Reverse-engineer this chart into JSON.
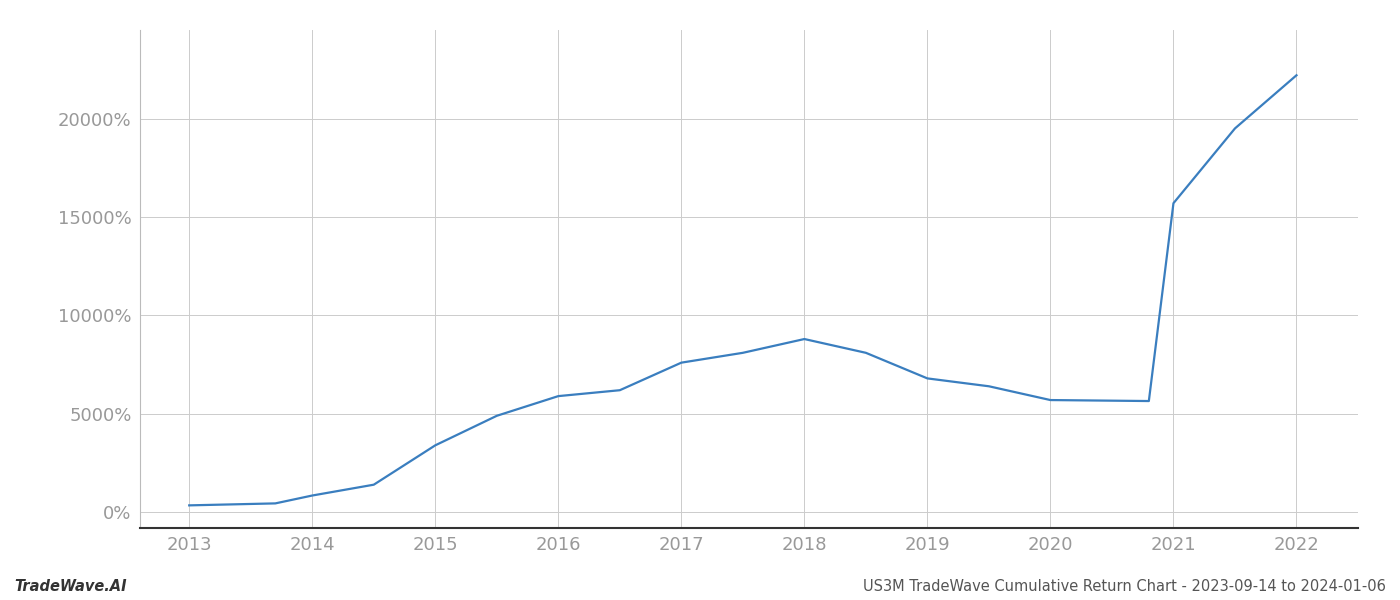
{
  "title": "",
  "footer_left": "TradeWave.AI",
  "footer_right": "US3M TradeWave Cumulative Return Chart - 2023-09-14 to 2024-01-06",
  "line_color": "#3a7ebf",
  "background_color": "#ffffff",
  "grid_color": "#cccccc",
  "x_values": [
    2013,
    2013.7,
    2014,
    2014.5,
    2015,
    2015.5,
    2016,
    2016.5,
    2017,
    2017.5,
    2018,
    2018.5,
    2019,
    2019.5,
    2020,
    2020.8,
    2021,
    2021.5,
    2022
  ],
  "y_values": [
    350,
    450,
    850,
    1400,
    3400,
    4900,
    5900,
    6200,
    7600,
    8100,
    8800,
    8100,
    6800,
    6400,
    5700,
    5650,
    15700,
    19500,
    22200
  ],
  "x_ticks": [
    2013,
    2014,
    2015,
    2016,
    2017,
    2018,
    2019,
    2020,
    2021,
    2022
  ],
  "y_ticks": [
    0,
    5000,
    10000,
    15000,
    20000
  ],
  "y_labels": [
    "0%",
    "5000%",
    "10000%",
    "15000%",
    "20000%"
  ],
  "xlim": [
    2012.6,
    2022.5
  ],
  "ylim": [
    -800,
    24500
  ],
  "line_width": 1.6,
  "footer_fontsize": 10.5,
  "tick_fontsize": 13,
  "tick_color": "#999999",
  "spine_color": "#333333",
  "left_spine_color": "#bbbbbb"
}
